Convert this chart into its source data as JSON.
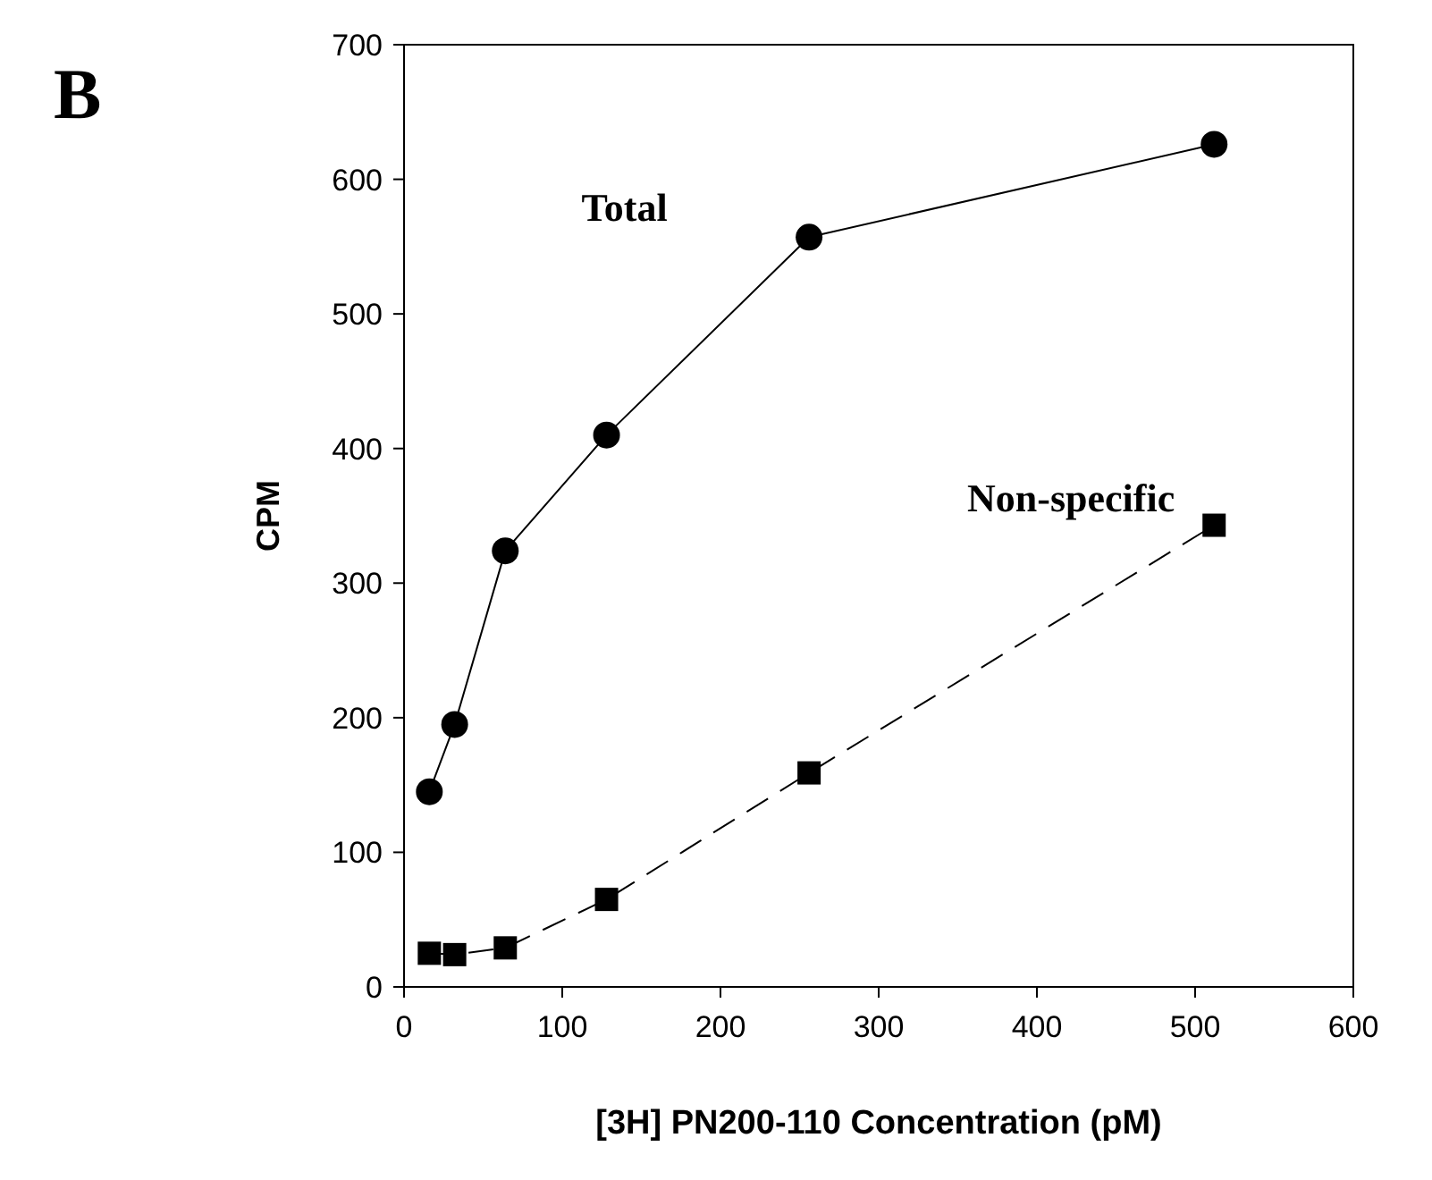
{
  "chart_data": {
    "type": "line",
    "xlabel": "[3H] PN200-110 Concentration (pM)",
    "ylabel": "CPM",
    "annotations": [
      "B"
    ],
    "xlim": [
      0,
      600
    ],
    "xticks": [
      0,
      100,
      200,
      300,
      400,
      500,
      600
    ],
    "ylim": [
      0,
      700
    ],
    "yticks": [
      0,
      100,
      200,
      300,
      400,
      500,
      600,
      700
    ],
    "grid": false,
    "series": [
      {
        "name": "Total",
        "color": "#000000",
        "x": [
          16,
          32,
          64,
          128,
          256,
          512
        ],
        "values": [
          145,
          195,
          324,
          410,
          557,
          626
        ],
        "marker": "circle",
        "line_style": "solid"
      },
      {
        "name": "Non-specific",
        "color": "#000000",
        "x": [
          16,
          32,
          64,
          128,
          256,
          512
        ],
        "values": [
          25,
          24,
          29,
          65,
          159,
          343
        ],
        "marker": "square",
        "line_style": "dashed"
      }
    ]
  }
}
